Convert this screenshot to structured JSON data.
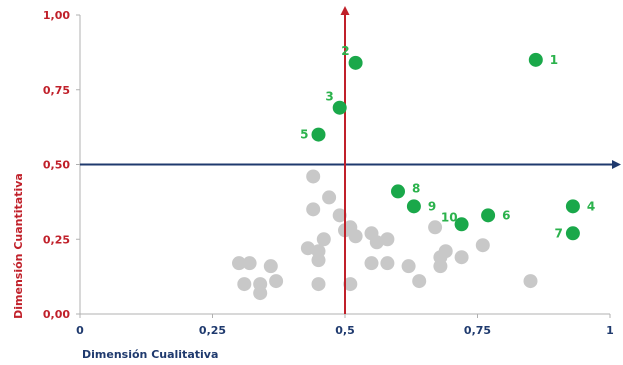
{
  "chart_data": {
    "type": "scatter",
    "xlabel": "Dimensión Cualitativa",
    "ylabel": "Dimensión Cuantitativa",
    "xlim": [
      0,
      1
    ],
    "ylim": [
      0,
      1
    ],
    "x_ticks": [
      "0",
      "0,25",
      "0,5",
      "0,75",
      "1"
    ],
    "x_tick_values": [
      0,
      0.25,
      0.5,
      0.75,
      1
    ],
    "y_ticks": [
      "0,00",
      "0,25",
      "0,50",
      "0,75",
      "1,00"
    ],
    "y_tick_values": [
      0,
      0.25,
      0.5,
      0.75,
      1
    ],
    "grid": false,
    "reference_lines": {
      "x": 0.5,
      "y": 0.5
    },
    "colors": {
      "highlight": "#1aa84a",
      "background": "#c8c8c8",
      "vertical_line": "#c0202a",
      "horizontal_line": "#1f3a6e"
    },
    "series": [
      {
        "points": [
          {
            "label": "1",
            "x": 0.86,
            "y": 0.85
          },
          {
            "label": "2",
            "x": 0.52,
            "y": 0.84
          },
          {
            "label": "3",
            "x": 0.49,
            "y": 0.69
          },
          {
            "label": "4",
            "x": 0.93,
            "y": 0.36
          },
          {
            "label": "5",
            "x": 0.45,
            "y": 0.6
          },
          {
            "label": "6",
            "x": 0.77,
            "y": 0.33
          },
          {
            "label": "7",
            "x": 0.93,
            "y": 0.27
          },
          {
            "label": "8",
            "x": 0.6,
            "y": 0.41
          },
          {
            "label": "9",
            "x": 0.63,
            "y": 0.36
          },
          {
            "label": "10",
            "x": 0.72,
            "y": 0.3
          }
        ]
      },
      {
        "points": [
          {
            "x": 0.44,
            "y": 0.46
          },
          {
            "x": 0.47,
            "y": 0.39
          },
          {
            "x": 0.44,
            "y": 0.35
          },
          {
            "x": 0.49,
            "y": 0.33
          },
          {
            "x": 0.51,
            "y": 0.29
          },
          {
            "x": 0.5,
            "y": 0.28
          },
          {
            "x": 0.52,
            "y": 0.26
          },
          {
            "x": 0.46,
            "y": 0.25
          },
          {
            "x": 0.55,
            "y": 0.27
          },
          {
            "x": 0.56,
            "y": 0.24
          },
          {
            "x": 0.58,
            "y": 0.25
          },
          {
            "x": 0.67,
            "y": 0.29
          },
          {
            "x": 0.43,
            "y": 0.22
          },
          {
            "x": 0.45,
            "y": 0.21
          },
          {
            "x": 0.45,
            "y": 0.18
          },
          {
            "x": 0.76,
            "y": 0.23
          },
          {
            "x": 0.69,
            "y": 0.21
          },
          {
            "x": 0.68,
            "y": 0.19
          },
          {
            "x": 0.72,
            "y": 0.19
          },
          {
            "x": 0.55,
            "y": 0.17
          },
          {
            "x": 0.58,
            "y": 0.17
          },
          {
            "x": 0.62,
            "y": 0.16
          },
          {
            "x": 0.68,
            "y": 0.16
          },
          {
            "x": 0.3,
            "y": 0.17
          },
          {
            "x": 0.32,
            "y": 0.17
          },
          {
            "x": 0.36,
            "y": 0.16
          },
          {
            "x": 0.31,
            "y": 0.1
          },
          {
            "x": 0.34,
            "y": 0.1
          },
          {
            "x": 0.34,
            "y": 0.07
          },
          {
            "x": 0.37,
            "y": 0.11
          },
          {
            "x": 0.45,
            "y": 0.1
          },
          {
            "x": 0.51,
            "y": 0.1
          },
          {
            "x": 0.64,
            "y": 0.11
          },
          {
            "x": 0.85,
            "y": 0.11
          }
        ]
      }
    ]
  }
}
